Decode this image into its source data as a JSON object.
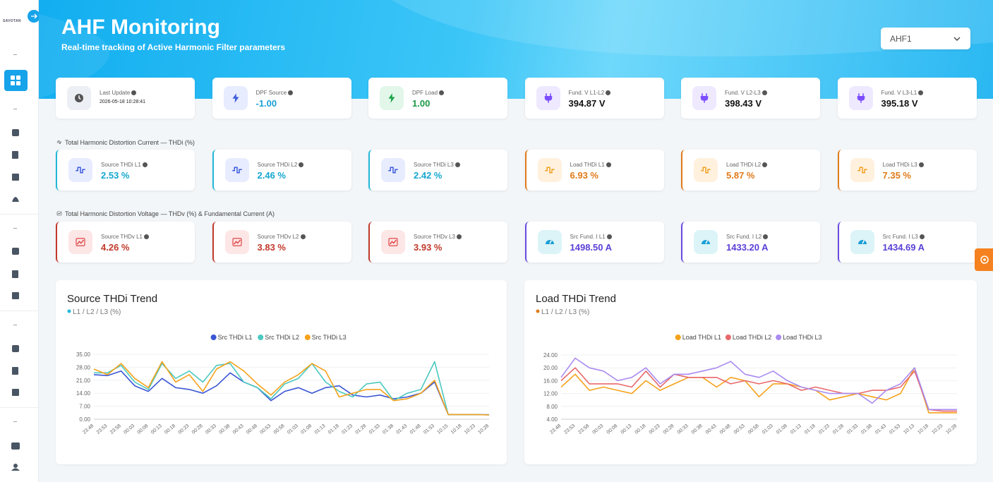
{
  "sidebar": {
    "brand": "SAVOTAN"
  },
  "header": {
    "title": "AHF Monitoring",
    "subtitle": "Real-time tracking of Active Harmonic Filter parameters",
    "selector": "AHF1"
  },
  "status_cards": [
    {
      "label": "Last Update",
      "value": "2026-05-18 10:28:41"
    },
    {
      "label": "DPF Source",
      "value": "-1.00"
    },
    {
      "label": "DPF Load",
      "value": "1.00"
    },
    {
      "label": "Fund. V L1-L2",
      "value": "394.87 V"
    },
    {
      "label": "Fund. V L2-L3",
      "value": "398.43 V"
    },
    {
      "label": "Fund. V L3-L1",
      "value": "395.18 V"
    }
  ],
  "sections": [
    {
      "title": "Total Harmonic Distortion Current — THDi (%)",
      "cards": [
        {
          "label": "Source THDi L1",
          "value": "2.53 %"
        },
        {
          "label": "Source THDi L2",
          "value": "2.46 %"
        },
        {
          "label": "Source THDi L3",
          "value": "2.42 %"
        },
        {
          "label": "Load THDi L1",
          "value": "6.93 %"
        },
        {
          "label": "Load THDi L2",
          "value": "5.87 %"
        },
        {
          "label": "Load THDi L3",
          "value": "7.35 %"
        }
      ]
    },
    {
      "title": "Total Harmonic Distortion Voltage — THDv (%) & Fundamental Current (A)",
      "cards": [
        {
          "label": "Source THDv L1",
          "value": "4.26 %"
        },
        {
          "label": "Source THDv L2",
          "value": "3.83 %"
        },
        {
          "label": "Source THDv L3",
          "value": "3.93 %"
        },
        {
          "label": "Src Fund. I L1",
          "value": "1498.50 A"
        },
        {
          "label": "Src Fund. I L2",
          "value": "1433.20 A"
        },
        {
          "label": "Src Fund. I L3",
          "value": "1434.69 A"
        }
      ]
    }
  ],
  "chart_data": [
    {
      "type": "line",
      "title": "Source THDi Trend",
      "subtitle": "L1 / L2 / L3 (%)",
      "legend": "top",
      "grid": true,
      "categories": [
        "23:48",
        "23:53",
        "23:58",
        "00:03",
        "00:08",
        "00:13",
        "00:18",
        "00:23",
        "00:28",
        "00:33",
        "00:38",
        "00:43",
        "00:48",
        "00:53",
        "00:58",
        "01:03",
        "01:08",
        "01:13",
        "01:18",
        "01:23",
        "01:28",
        "01:33",
        "01:38",
        "01:43",
        "01:48",
        "01:53",
        "10:15",
        "10:18",
        "10:23",
        "10:28"
      ],
      "ylim": [
        0,
        35
      ],
      "yticks": [
        {
          "value": 0,
          "label": "0.00"
        },
        {
          "value": 7,
          "label": "7.00"
        },
        {
          "value": 14,
          "label": "14.00"
        },
        {
          "value": 21,
          "label": "21.00"
        },
        {
          "value": 28,
          "label": "28.00"
        },
        {
          "value": 35,
          "label": "35.00"
        }
      ],
      "series": [
        {
          "name": "Src THDi L1",
          "color": "#3a56d4",
          "values": [
            24,
            23.5,
            26,
            18,
            15,
            22,
            17,
            16,
            14,
            18,
            25,
            20,
            17,
            10,
            15,
            17,
            14,
            17,
            18,
            13,
            12,
            13,
            11,
            12,
            14,
            20,
            2.5,
            2.5,
            2.5,
            2.4
          ]
        },
        {
          "name": "Src THDi L2",
          "color": "#4cc9c0",
          "values": [
            25,
            25,
            29,
            20,
            16,
            30,
            22,
            26,
            20,
            29,
            30,
            20,
            17,
            11,
            19,
            22,
            30,
            20,
            15,
            12,
            19,
            20,
            10,
            14,
            16,
            31,
            2.5,
            2.5,
            2.5,
            2.3
          ]
        },
        {
          "name": "Src THDi L3",
          "color": "#f5a21b",
          "values": [
            27,
            24,
            30,
            22,
            17,
            31,
            20,
            24,
            15,
            27,
            31,
            26,
            19,
            13,
            20,
            24,
            30,
            26,
            12,
            14,
            16,
            16,
            10,
            11,
            14,
            21,
            2.5,
            2.5,
            2.5,
            2.3
          ]
        }
      ]
    },
    {
      "type": "line",
      "title": "Load THDi Trend",
      "subtitle": "L1 / L2 / L3 (%)",
      "legend": "top",
      "grid": true,
      "categories": [
        "23:48",
        "23:53",
        "23:58",
        "00:03",
        "00:08",
        "00:13",
        "00:18",
        "00:23",
        "00:28",
        "00:33",
        "00:38",
        "00:43",
        "00:48",
        "00:53",
        "00:58",
        "01:03",
        "01:08",
        "01:13",
        "01:18",
        "01:23",
        "01:28",
        "01:33",
        "01:38",
        "01:43",
        "01:53",
        "10:13",
        "10:18",
        "10:23",
        "10:28"
      ],
      "ylim": [
        4,
        24
      ],
      "yticks": [
        {
          "value": 4,
          "label": "4.00"
        },
        {
          "value": 8,
          "label": "8.00"
        },
        {
          "value": 12,
          "label": "12.00"
        },
        {
          "value": 16,
          "label": "16.00"
        },
        {
          "value": 20,
          "label": "20.00"
        },
        {
          "value": 24,
          "label": "24.00"
        }
      ],
      "series": [
        {
          "name": "Load THDi L1",
          "color": "#f5a21b",
          "values": [
            14,
            18,
            13,
            14,
            13,
            12,
            16,
            13,
            15,
            17,
            17,
            14,
            17,
            16,
            11,
            15,
            15,
            14,
            13,
            10,
            11,
            12,
            11,
            10,
            12,
            20,
            6,
            6,
            6
          ]
        },
        {
          "name": "Load THDi L2",
          "color": "#e8696b",
          "values": [
            16,
            20,
            15,
            15,
            15,
            14,
            19,
            14,
            18,
            17,
            17,
            17,
            15,
            16,
            15,
            16,
            15,
            13,
            14,
            13,
            12,
            12,
            13,
            13,
            14,
            19,
            7,
            6.5,
            6.5
          ]
        },
        {
          "name": "Load THDi L3",
          "color": "#a98bf0",
          "values": [
            17,
            23,
            20,
            19,
            16,
            17,
            20,
            15,
            18,
            18,
            19,
            20,
            22,
            18,
            17,
            19,
            16,
            14,
            13,
            12,
            12,
            12,
            9,
            13,
            15,
            20,
            7,
            7,
            7
          ]
        }
      ]
    }
  ]
}
